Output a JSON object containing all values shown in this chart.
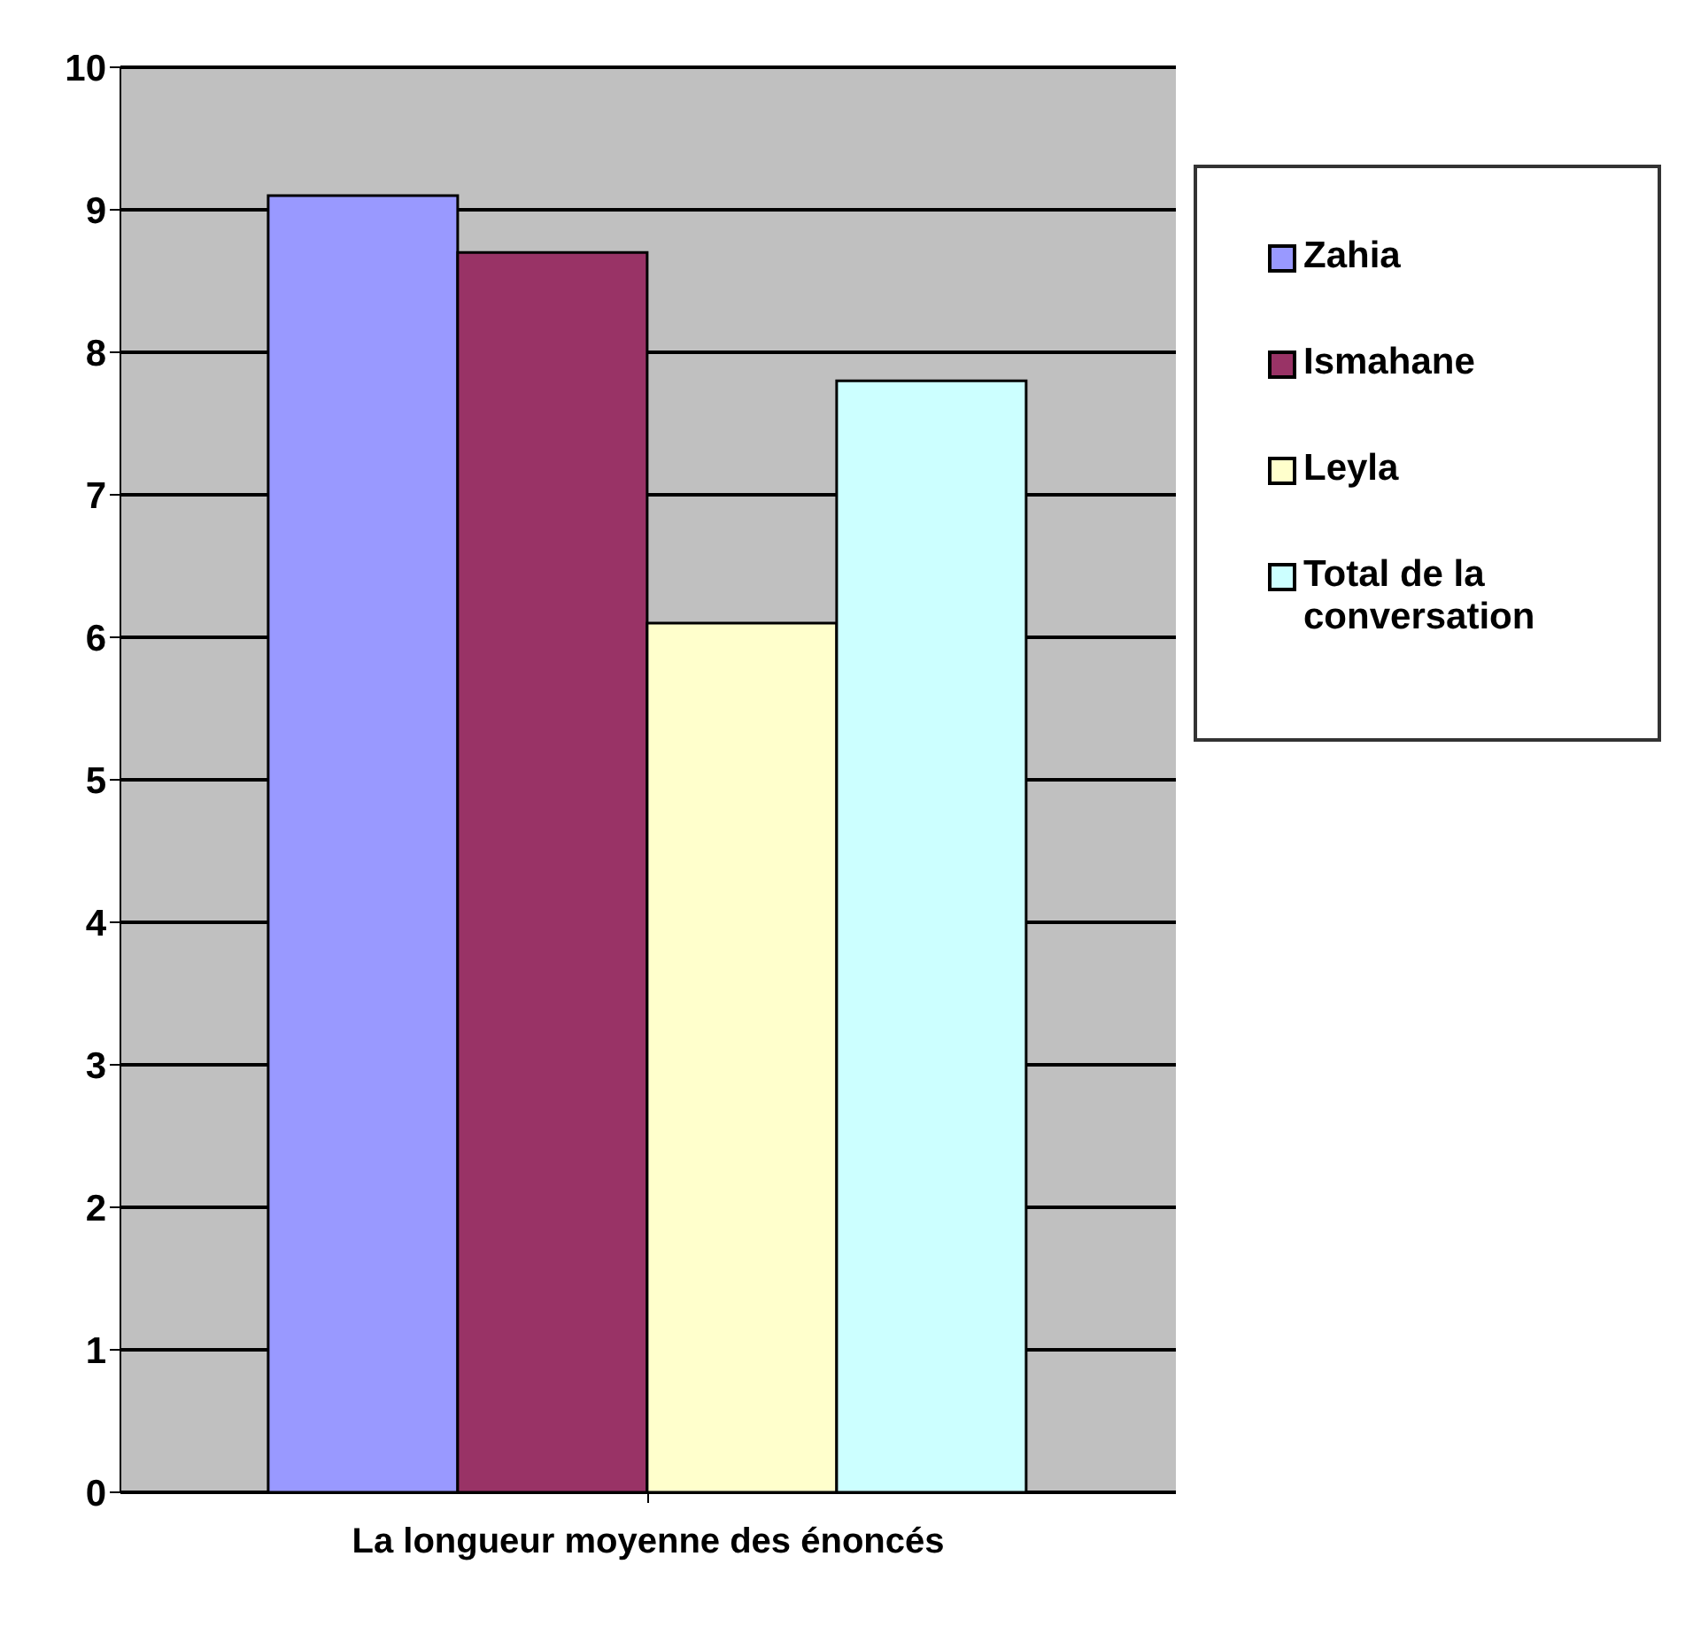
{
  "chart_data": {
    "type": "bar",
    "categories": [
      "La longueur moyenne des énoncés"
    ],
    "series": [
      {
        "name": "Zahia",
        "color": "#9999ff",
        "values": [
          9.1
        ]
      },
      {
        "name": "Ismahane",
        "color": "#993366",
        "values": [
          8.7
        ]
      },
      {
        "name": "Leyla",
        "color": "#ffffcc",
        "values": [
          6.1
        ]
      },
      {
        "name": "Total de la conversation",
        "color": "#ccffff",
        "values": [
          7.8
        ]
      }
    ],
    "ylim": [
      0,
      10
    ],
    "yticks": [
      0,
      1,
      2,
      3,
      4,
      5,
      6,
      7,
      8,
      9,
      10
    ],
    "grid": "y",
    "legend": "top right"
  }
}
